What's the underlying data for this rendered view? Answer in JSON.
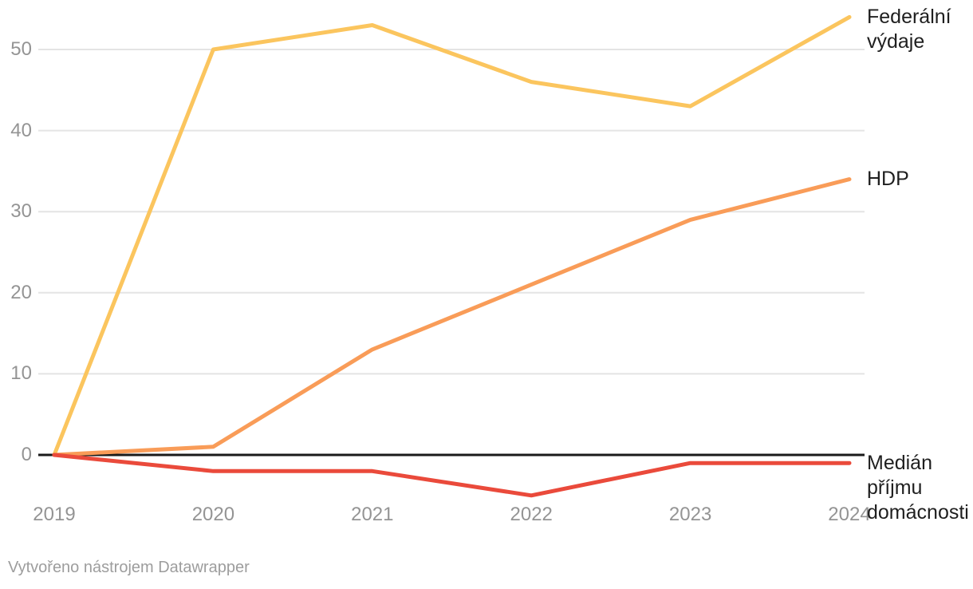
{
  "chart_data": {
    "type": "line",
    "x": [
      2019,
      2020,
      2021,
      2022,
      2023,
      2024
    ],
    "x_tick_labels": [
      "2019",
      "2020",
      "2021",
      "2022",
      "2023",
      "2024"
    ],
    "y_ticks": [
      0,
      10,
      20,
      30,
      40,
      50
    ],
    "ylim": [
      -6,
      55
    ],
    "grid": "horizontal-only",
    "legend_position": "line-end-labels-right",
    "baseline": 0,
    "series": [
      {
        "name": "Federální výdaje",
        "color": "#FBC55E",
        "values": [
          0,
          50,
          53,
          46,
          43,
          54
        ]
      },
      {
        "name": "HDP",
        "color": "#F99C58",
        "values": [
          0,
          1,
          13,
          21,
          29,
          34
        ]
      },
      {
        "name": "Medián příjmu domácnosti",
        "color": "#EA4A3B",
        "values": [
          0,
          -2,
          -2,
          -5,
          -1,
          -1
        ]
      }
    ]
  },
  "footer": {
    "credit": "Vytvořeno nástrojem Datawrapper"
  },
  "colors": {
    "background": "#ffffff",
    "grid": "#e4e4e4",
    "axis_baseline": "#1a1a1a",
    "tick_text": "#949494",
    "label_text": "#1f1f1f",
    "footer_text": "#9d9d9d"
  }
}
